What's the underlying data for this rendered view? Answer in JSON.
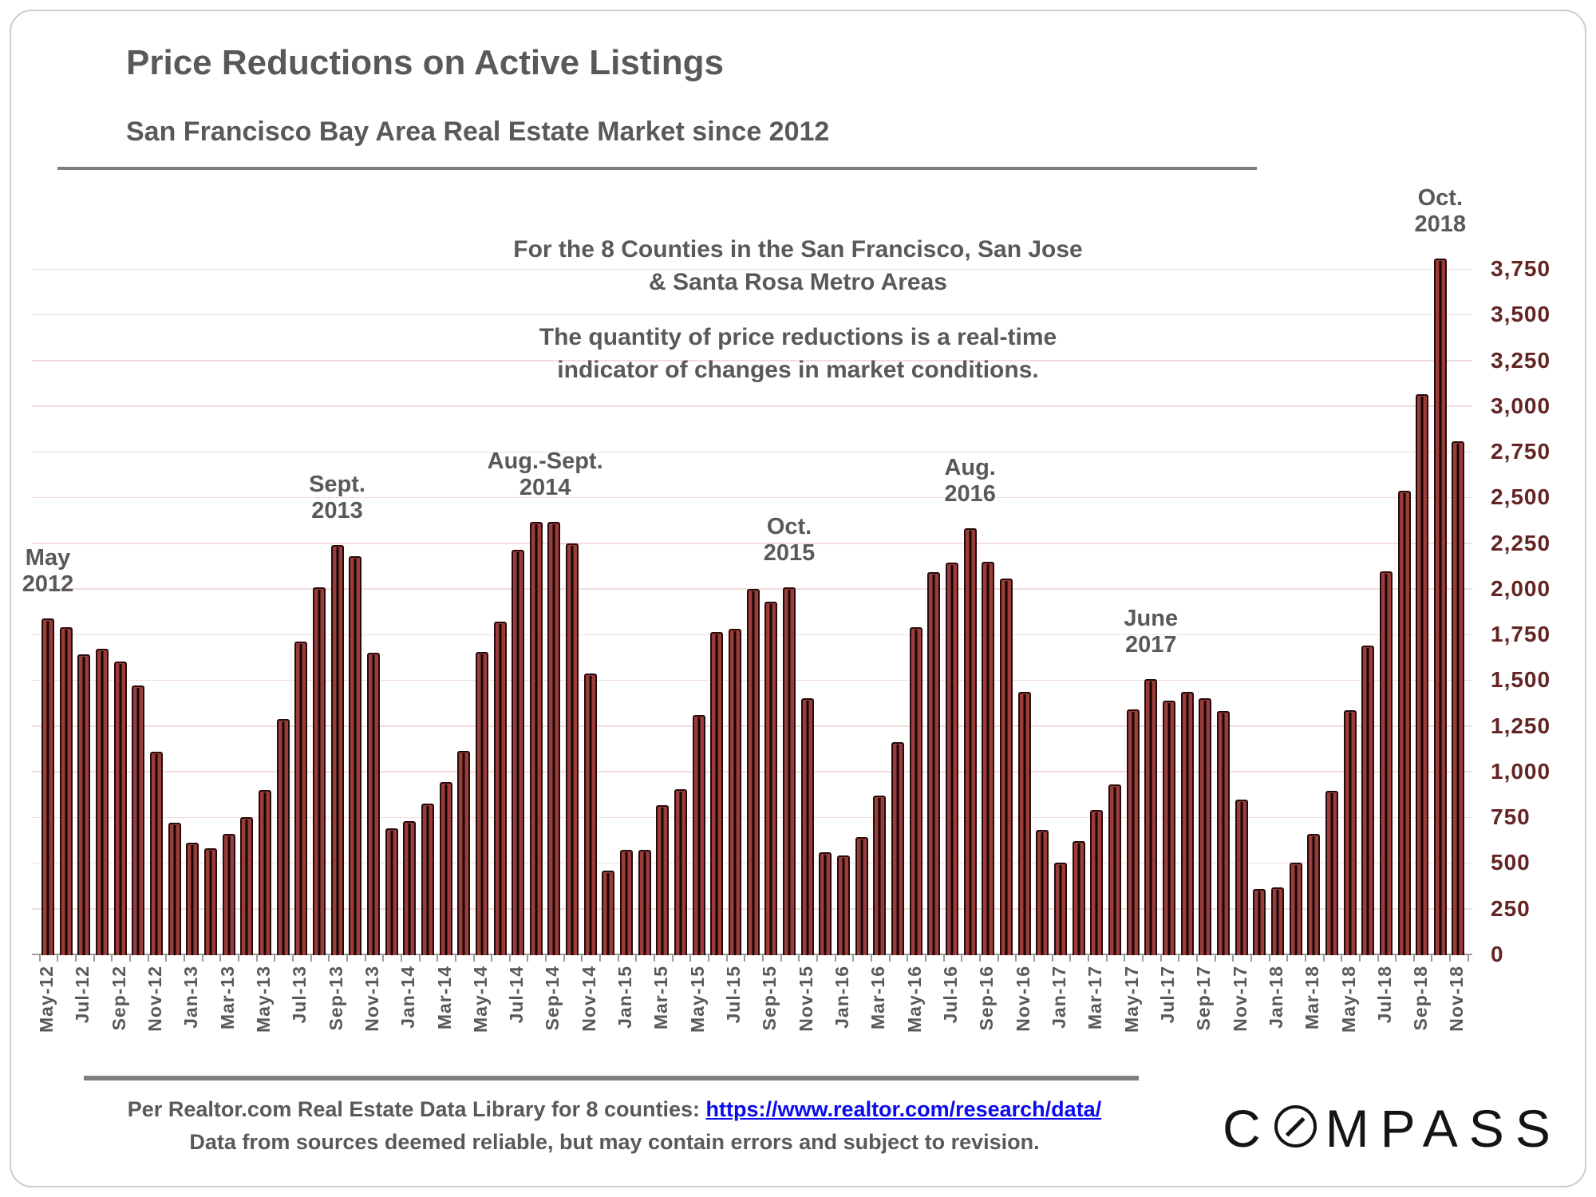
{
  "slide": {
    "title": "Price Reductions on Active Listings",
    "subtitle": "San Francisco Bay Area Real Estate Market since 2012"
  },
  "chart_data": {
    "type": "bar",
    "title": "Price Reductions on Active Listings",
    "subtitle": "San Francisco Bay Area Real Estate Market since 2012",
    "xlabel": "",
    "ylabel": "",
    "ylim": [
      0,
      3900
    ],
    "ytick_step": 250,
    "ytick_labels": [
      "0",
      "250",
      "500",
      "750",
      "1,000",
      "1,250",
      "1,500",
      "1,750",
      "2,000",
      "2,250",
      "2,500",
      "2,750",
      "3,000",
      "3,250",
      "3,500",
      "3,750"
    ],
    "grid": "horizontal",
    "x_tick_label_every": 2,
    "categories": [
      "May-12",
      "Jun-12",
      "Jul-12",
      "Aug-12",
      "Sep-12",
      "Oct-12",
      "Nov-12",
      "Dec-12",
      "Jan-13",
      "Feb-13",
      "Mar-13",
      "Apr-13",
      "May-13",
      "Jun-13",
      "Jul-13",
      "Aug-13",
      "Sep-13",
      "Oct-13",
      "Nov-13",
      "Dec-13",
      "Jan-14",
      "Feb-14",
      "Mar-14",
      "Apr-14",
      "May-14",
      "Jun-14",
      "Jul-14",
      "Aug-14",
      "Sep-14",
      "Oct-14",
      "Nov-14",
      "Dec-14",
      "Jan-15",
      "Feb-15",
      "Mar-15",
      "Apr-15",
      "May-15",
      "Jun-15",
      "Jul-15",
      "Aug-15",
      "Sep-15",
      "Oct-15",
      "Nov-15",
      "Dec-15",
      "Jan-16",
      "Feb-16",
      "Mar-16",
      "Apr-16",
      "May-16",
      "Jun-16",
      "Jul-16",
      "Aug-16",
      "Sep-16",
      "Oct-16",
      "Nov-16",
      "Dec-16",
      "Jan-17",
      "Feb-17",
      "Mar-17",
      "Apr-17",
      "May-17",
      "Jun-17",
      "Jul-17",
      "Aug-17",
      "Sep-17",
      "Oct-17",
      "Nov-17",
      "Dec-17",
      "Jan-18",
      "Feb-18",
      "Mar-18",
      "Apr-18",
      "May-18",
      "Jun-18",
      "Jul-18",
      "Aug-18",
      "Sep-18",
      "Oct-18",
      "Nov-18"
    ],
    "values": [
      1840,
      1790,
      1640,
      1670,
      1600,
      1470,
      1110,
      720,
      610,
      580,
      660,
      750,
      900,
      1290,
      1710,
      2010,
      2240,
      2180,
      1650,
      690,
      730,
      825,
      945,
      1115,
      1655,
      1820,
      2215,
      2365,
      2365,
      2250,
      1535,
      460,
      570,
      570,
      815,
      905,
      1310,
      1765,
      1780,
      2000,
      1930,
      2010,
      1400,
      560,
      540,
      640,
      870,
      1160,
      1790,
      2090,
      2145,
      2330,
      2150,
      2055,
      1435,
      680,
      500,
      620,
      790,
      930,
      1340,
      1505,
      1390,
      1435,
      1400,
      1330,
      845,
      360,
      365,
      500,
      660,
      895,
      1335,
      1690,
      2095,
      2535,
      3065,
      3805,
      2805
    ],
    "annotations": [
      {
        "lines": [
          "May",
          "2012"
        ],
        "month": "May-12",
        "month_index": 0
      },
      {
        "lines": [
          "Sept.",
          "2013"
        ],
        "month": "Sep-13",
        "month_index": 16
      },
      {
        "lines": [
          "Aug.-Sept.",
          "2014"
        ],
        "month": "Aug-14 / Sep-14",
        "month_index": 27.5
      },
      {
        "lines": [
          "Oct.",
          "2015"
        ],
        "month": "Oct-15",
        "month_index": 41
      },
      {
        "lines": [
          "Aug.",
          "2016"
        ],
        "month": "Aug-16",
        "month_index": 51
      },
      {
        "lines": [
          "June",
          "2017"
        ],
        "month": "Jun-17",
        "month_index": 61
      },
      {
        "lines": [
          "Oct.",
          "2018"
        ],
        "month": "Oct-18",
        "month_index": 77
      }
    ],
    "center_notes": [
      {
        "lines": [
          "For the 8 Counties in the San Francisco, San Jose",
          "& Santa Rosa Metro Areas"
        ]
      },
      {
        "lines": [
          "The quantity of price reductions is a real-time",
          "indicator of changes in market conditions."
        ]
      }
    ],
    "legend": "none",
    "colors": {
      "bar_fill": "#9a3d3a",
      "bar_border": "#260b0a",
      "bar_stripe": "#140404",
      "gridline": "#f2dddc",
      "y_axis_label": "#632423",
      "x_axis_label": "#595959",
      "annotation": "#595959",
      "axis_line": "#9b9b9b",
      "title": "#595959",
      "divider": "#7f7f7f",
      "footer_text": "#595959",
      "footer_link": "#0a0af0",
      "logo": "#141414"
    }
  },
  "footer": {
    "source_text": "Per Realtor.com Real Estate Data Library for 8 counties:",
    "link_text": "https://www.realtor.com/research/data/",
    "disclaimer": "Data from sources deemed reliable, but may contain errors and subject to revision."
  },
  "logo": {
    "name": "COMPASS",
    "prefix": "C",
    "suffix": "MPASS"
  }
}
